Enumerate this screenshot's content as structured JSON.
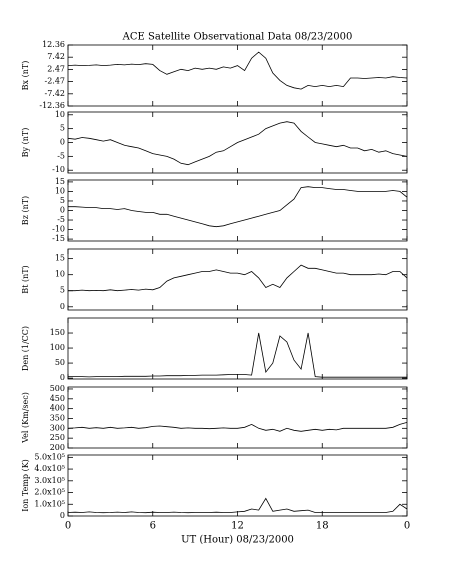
{
  "chart_data": [
    {
      "type": "line",
      "title": "ACE Satellite Observational Data  08/23/2000",
      "ylabel": "Bx (nT)",
      "xlim": [
        0,
        24
      ],
      "ylim": [
        -12.36,
        12.36
      ],
      "yticks": [
        12.36,
        7.42,
        2.47,
        -2.47,
        -7.42,
        -12.36
      ],
      "x": [
        0,
        0.5,
        1,
        1.5,
        2,
        2.5,
        3,
        3.5,
        4,
        4.5,
        5,
        5.5,
        6,
        6.5,
        7,
        7.5,
        8,
        8.5,
        9,
        9.5,
        10,
        10.5,
        11,
        11.5,
        12,
        12.5,
        13,
        13.5,
        14,
        14.5,
        15,
        15.5,
        16,
        16.5,
        17,
        17.5,
        18,
        18.5,
        19,
        19.5,
        20,
        20.5,
        21,
        21.5,
        22,
        22.5,
        23,
        23.5,
        24
      ],
      "series": [
        {
          "color": "#000000",
          "values": [
            4,
            4.2,
            4,
            4.1,
            4.3,
            4,
            4.2,
            4.5,
            4.3,
            4.6,
            4.4,
            4.8,
            4.5,
            2,
            0.5,
            1.5,
            2.5,
            2,
            3,
            2.5,
            3,
            2.5,
            3.5,
            3,
            4,
            2,
            7,
            9.5,
            7,
            1,
            -2,
            -4,
            -5,
            -5.5,
            -4,
            -4.5,
            -4,
            -4.5,
            -4,
            -4.5,
            -1,
            -1,
            -1.2,
            -1,
            -0.8,
            -1,
            -0.5,
            -0.8,
            -1
          ]
        }
      ]
    },
    {
      "type": "line",
      "ylabel": "By (nT)",
      "xlim": [
        0,
        24
      ],
      "ylim": [
        -11,
        11
      ],
      "yticks": [
        10,
        5,
        0,
        -5,
        -10
      ],
      "x": [
        0,
        0.5,
        1,
        1.5,
        2,
        2.5,
        3,
        3.5,
        4,
        4.5,
        5,
        5.5,
        6,
        6.5,
        7,
        7.5,
        8,
        8.5,
        9,
        9.5,
        10,
        10.5,
        11,
        11.5,
        12,
        12.5,
        13,
        13.5,
        14,
        14.5,
        15,
        15.5,
        16,
        16.5,
        17,
        17.5,
        18,
        18.5,
        19,
        19.5,
        20,
        20.5,
        21,
        21.5,
        22,
        22.5,
        23,
        23.5,
        24
      ],
      "series": [
        {
          "color": "#000000",
          "values": [
            1.5,
            1.2,
            1.8,
            1.5,
            1,
            0.5,
            1,
            0,
            -1,
            -1.5,
            -2,
            -3,
            -4,
            -4.5,
            -5,
            -6,
            -7.5,
            -8,
            -7,
            -6,
            -5,
            -3.5,
            -3,
            -1.5,
            0,
            1,
            2,
            3,
            5,
            6,
            7,
            7.5,
            7,
            4,
            2,
            0,
            -0.5,
            -1,
            -1.5,
            -1,
            -2,
            -2,
            -3,
            -2.5,
            -3.5,
            -3,
            -4,
            -4.5,
            -5
          ]
        }
      ]
    },
    {
      "type": "line",
      "ylabel": "Bz (nT)",
      "xlim": [
        0,
        24
      ],
      "ylim": [
        -16,
        16
      ],
      "yticks": [
        15,
        10,
        5,
        0,
        -5,
        -10,
        -15
      ],
      "x": [
        0,
        0.5,
        1,
        1.5,
        2,
        2.5,
        3,
        3.5,
        4,
        4.5,
        5,
        5.5,
        6,
        6.5,
        7,
        7.5,
        8,
        8.5,
        9,
        9.5,
        10,
        10.5,
        11,
        11.5,
        12,
        12.5,
        13,
        13.5,
        14,
        14.5,
        15,
        15.5,
        16,
        16.5,
        17,
        17.5,
        18,
        18.5,
        19,
        19.5,
        20,
        20.5,
        21,
        21.5,
        22,
        22.5,
        23,
        23.5,
        24
      ],
      "series": [
        {
          "color": "#000000",
          "values": [
            2,
            2,
            1.8,
            1.5,
            1.5,
            1,
            1,
            0.5,
            1,
            0,
            -0.5,
            -1,
            -1,
            -2,
            -2,
            -3,
            -4,
            -5,
            -6,
            -7,
            -8,
            -8.5,
            -8,
            -7,
            -6,
            -5,
            -4,
            -3,
            -2,
            -1,
            0,
            3,
            6,
            12,
            12.5,
            12,
            12,
            11.5,
            11,
            11,
            10.5,
            10,
            10,
            10,
            10,
            10,
            10.5,
            10,
            7
          ]
        }
      ]
    },
    {
      "type": "line",
      "ylabel": "Bt (nT)",
      "xlim": [
        0,
        24
      ],
      "ylim": [
        -1,
        18
      ],
      "yticks": [
        15,
        10,
        5,
        0
      ],
      "x": [
        0,
        0.5,
        1,
        1.5,
        2,
        2.5,
        3,
        3.5,
        4,
        4.5,
        5,
        5.5,
        6,
        6.5,
        7,
        7.5,
        8,
        8.5,
        9,
        9.5,
        10,
        10.5,
        11,
        11.5,
        12,
        12.5,
        13,
        13.5,
        14,
        14.5,
        15,
        15.5,
        16,
        16.5,
        17,
        17.5,
        18,
        18.5,
        19,
        19.5,
        20,
        20.5,
        21,
        21.5,
        22,
        22.5,
        23,
        23.5,
        24
      ],
      "series": [
        {
          "color": "#000000",
          "values": [
            5,
            5,
            5.2,
            5,
            5.1,
            5,
            5.3,
            5,
            5.2,
            5.4,
            5.2,
            5.5,
            5.3,
            6,
            8,
            9,
            9.5,
            10,
            10.5,
            11,
            11,
            11.5,
            11,
            10.5,
            10.5,
            10,
            11,
            9,
            6,
            7,
            6,
            9,
            11,
            13,
            12,
            12,
            11.5,
            11,
            10.5,
            10.5,
            10,
            10,
            10,
            10,
            10.2,
            10,
            11,
            11,
            9
          ]
        }
      ]
    },
    {
      "type": "line",
      "ylabel": "Den (1/CC)",
      "xlim": [
        0,
        24
      ],
      "ylim": [
        -3,
        200
      ],
      "yticks": [
        150,
        100,
        50,
        0
      ],
      "x": [
        0,
        0.5,
        1,
        1.5,
        2,
        2.5,
        3,
        3.5,
        4,
        4.5,
        5,
        5.5,
        6,
        6.5,
        7,
        7.5,
        8,
        8.5,
        9,
        9.5,
        10,
        10.5,
        11,
        11.5,
        12,
        12.5,
        13,
        13.5,
        14,
        14.5,
        15,
        15.5,
        16,
        16.5,
        17,
        17.5,
        18,
        18.5,
        19,
        19.5,
        20,
        20.5,
        21,
        21.5,
        22,
        22.5,
        23,
        23.5,
        24
      ],
      "series": [
        {
          "color": "#000000",
          "values": [
            5,
            5,
            5,
            4,
            5,
            5,
            5,
            5,
            6,
            6,
            6,
            6,
            7,
            7,
            8,
            8,
            8,
            9,
            9,
            10,
            10,
            10,
            11,
            12,
            12,
            12,
            10,
            150,
            20,
            50,
            140,
            120,
            60,
            30,
            150,
            5,
            3,
            3,
            3,
            3,
            3,
            3,
            3,
            3,
            3,
            3,
            3,
            3,
            3
          ]
        }
      ]
    },
    {
      "type": "line",
      "ylabel": "Vel (Km/sec)",
      "xlim": [
        0,
        24
      ],
      "ylim": [
        200,
        510
      ],
      "yticks": [
        500,
        450,
        400,
        350,
        300,
        250,
        200
      ],
      "x": [
        0,
        0.5,
        1,
        1.5,
        2,
        2.5,
        3,
        3.5,
        4,
        4.5,
        5,
        5.5,
        6,
        6.5,
        7,
        7.5,
        8,
        8.5,
        9,
        9.5,
        10,
        10.5,
        11,
        11.5,
        12,
        12.5,
        13,
        13.5,
        14,
        14.5,
        15,
        15.5,
        16,
        16.5,
        17,
        17.5,
        18,
        18.5,
        19,
        19.5,
        20,
        20.5,
        21,
        21.5,
        22,
        22.5,
        23,
        23.5,
        24
      ],
      "series": [
        {
          "color": "#000000",
          "values": [
            300,
            302,
            305,
            300,
            303,
            300,
            305,
            300,
            302,
            305,
            300,
            303,
            310,
            312,
            308,
            305,
            300,
            302,
            300,
            300,
            298,
            300,
            302,
            300,
            300,
            305,
            320,
            300,
            290,
            295,
            285,
            300,
            290,
            285,
            290,
            295,
            290,
            295,
            292,
            300,
            300,
            300,
            300,
            300,
            300,
            300,
            305,
            320,
            330
          ]
        }
      ]
    },
    {
      "type": "line",
      "ylabel": "Ion Temp (K)",
      "xlabel": "UT (Hour)  08/23/2000",
      "xlim": [
        0,
        24
      ],
      "xticks": [
        0,
        6,
        12,
        18,
        {
          "value": 24,
          "label": "0"
        }
      ],
      "ylim": [
        0,
        520000
      ],
      "yticks": [
        {
          "value": 500000,
          "label": "5.0x10⁵"
        },
        {
          "value": 400000,
          "label": "4.0x10⁵"
        },
        {
          "value": 300000,
          "label": "3.0x10⁵"
        },
        {
          "value": 200000,
          "label": "2.0x10⁵"
        },
        {
          "value": 100000,
          "label": "1.0x10⁵"
        },
        0
      ],
      "x": [
        0,
        0.5,
        1,
        1.5,
        2,
        2.5,
        3,
        3.5,
        4,
        4.5,
        5,
        5.5,
        6,
        6.5,
        7,
        7.5,
        8,
        8.5,
        9,
        9.5,
        10,
        10.5,
        11,
        11.5,
        12,
        12.5,
        13,
        13.5,
        14,
        14.5,
        15,
        15.5,
        16,
        16.5,
        17,
        17.5,
        18,
        18.5,
        19,
        19.5,
        20,
        20.5,
        21,
        21.5,
        22,
        22.5,
        23,
        23.5,
        24
      ],
      "series": [
        {
          "color": "#000000",
          "values": [
            30000,
            32000,
            30000,
            35000,
            30000,
            28000,
            30000,
            33000,
            30000,
            35000,
            30000,
            28000,
            32000,
            30000,
            30000,
            33000,
            30000,
            28000,
            30000,
            30000,
            30000,
            32000,
            30000,
            30000,
            35000,
            40000,
            60000,
            50000,
            150000,
            40000,
            50000,
            60000,
            40000,
            45000,
            50000,
            30000,
            30000,
            30000,
            30000,
            30000,
            30000,
            30000,
            30000,
            30000,
            30000,
            30000,
            40000,
            100000,
            60000
          ]
        }
      ]
    }
  ]
}
